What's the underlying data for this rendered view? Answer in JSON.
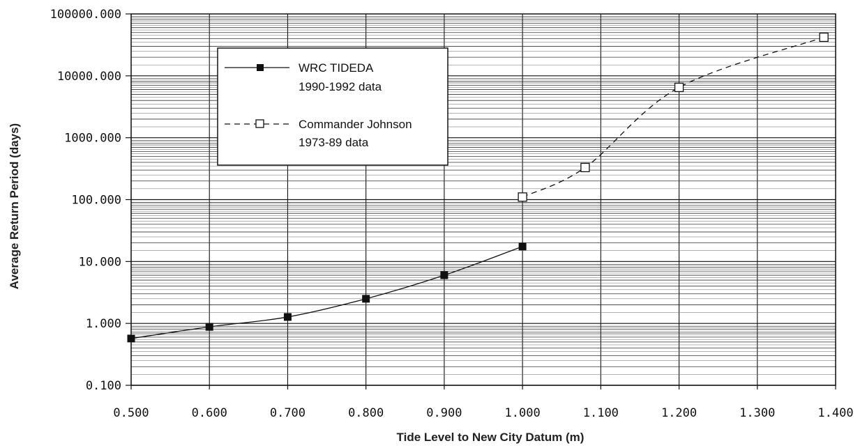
{
  "chart_data": {
    "type": "line",
    "xlabel": "Tide Level to New City Datum (m)",
    "ylabel": "Average Return Period (days)",
    "xlim": [
      0.5,
      1.4
    ],
    "ylim": [
      0.1,
      100000
    ],
    "y_scale": "log",
    "grid": true,
    "x_ticks": [
      "0.500",
      "0.600",
      "0.700",
      "0.800",
      "0.900",
      "1.000",
      "1.100",
      "1.200",
      "1.300",
      "1.400"
    ],
    "y_ticks": [
      "0.100",
      "1.000",
      "10.000",
      "100.000",
      "1000.000",
      "10000.000",
      "100000.000"
    ],
    "legend_position": "top-left",
    "series": [
      {
        "name": "WRC TIDEDA 1990-1992 data",
        "legend_lines": [
          "WRC TIDEDA",
          "1990-1992  data"
        ],
        "line_style": "solid",
        "marker": "filled-square",
        "x": [
          0.5,
          0.6,
          0.7,
          0.8,
          0.9,
          1.0
        ],
        "y": [
          0.57,
          0.88,
          1.27,
          2.5,
          6.0,
          17.5
        ]
      },
      {
        "name": "Commander Johnson 1973-89 data",
        "legend_lines": [
          "Commander Johnson",
          "1973-89  data"
        ],
        "line_style": "dashed",
        "marker": "open-square",
        "x": [
          1.0,
          1.08,
          1.2,
          1.385
        ],
        "y": [
          110,
          330,
          6500,
          42000
        ]
      }
    ]
  }
}
